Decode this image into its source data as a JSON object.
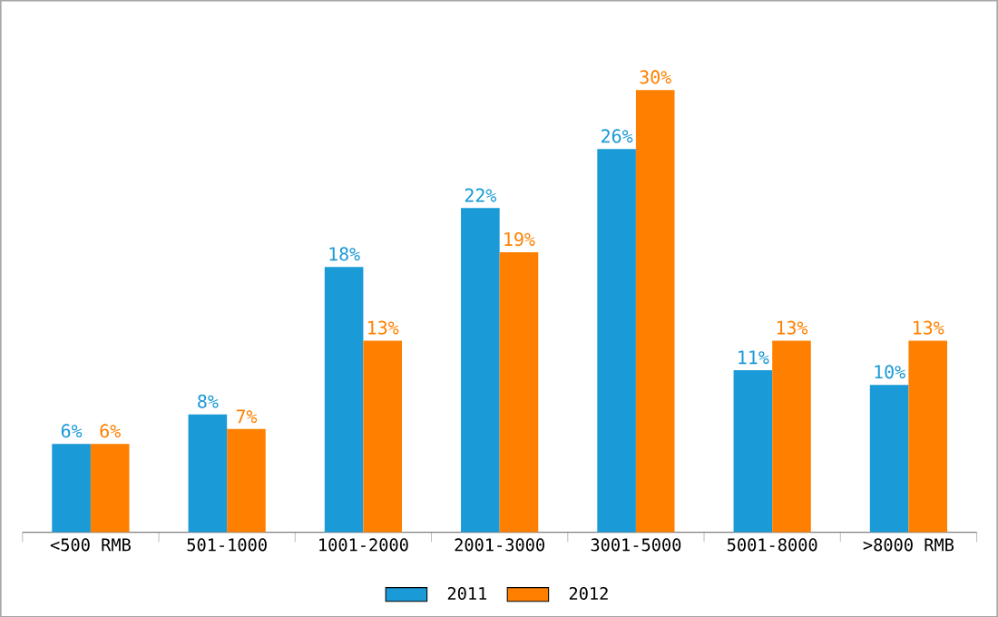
{
  "chart_data": {
    "type": "bar",
    "categories": [
      "<500 RMB",
      "501-1000",
      "1001-2000",
      "2001-3000",
      "3001-5000",
      "5001-8000",
      ">8000 RMB"
    ],
    "series": [
      {
        "name": "2011",
        "color": "#1a9ad6",
        "values": [
          6,
          8,
          18,
          22,
          26,
          11,
          10
        ],
        "value_labels": [
          "6%",
          "8%",
          "18%",
          "22%",
          "26%",
          "11%",
          "10%"
        ]
      },
      {
        "name": "2012",
        "color": "#ff8000",
        "values": [
          6,
          7,
          13,
          19,
          30,
          13,
          13
        ],
        "value_labels": [
          "6%",
          "7%",
          "13%",
          "19%",
          "30%",
          "13%",
          "13%"
        ]
      }
    ],
    "legend": "bottom"
  }
}
